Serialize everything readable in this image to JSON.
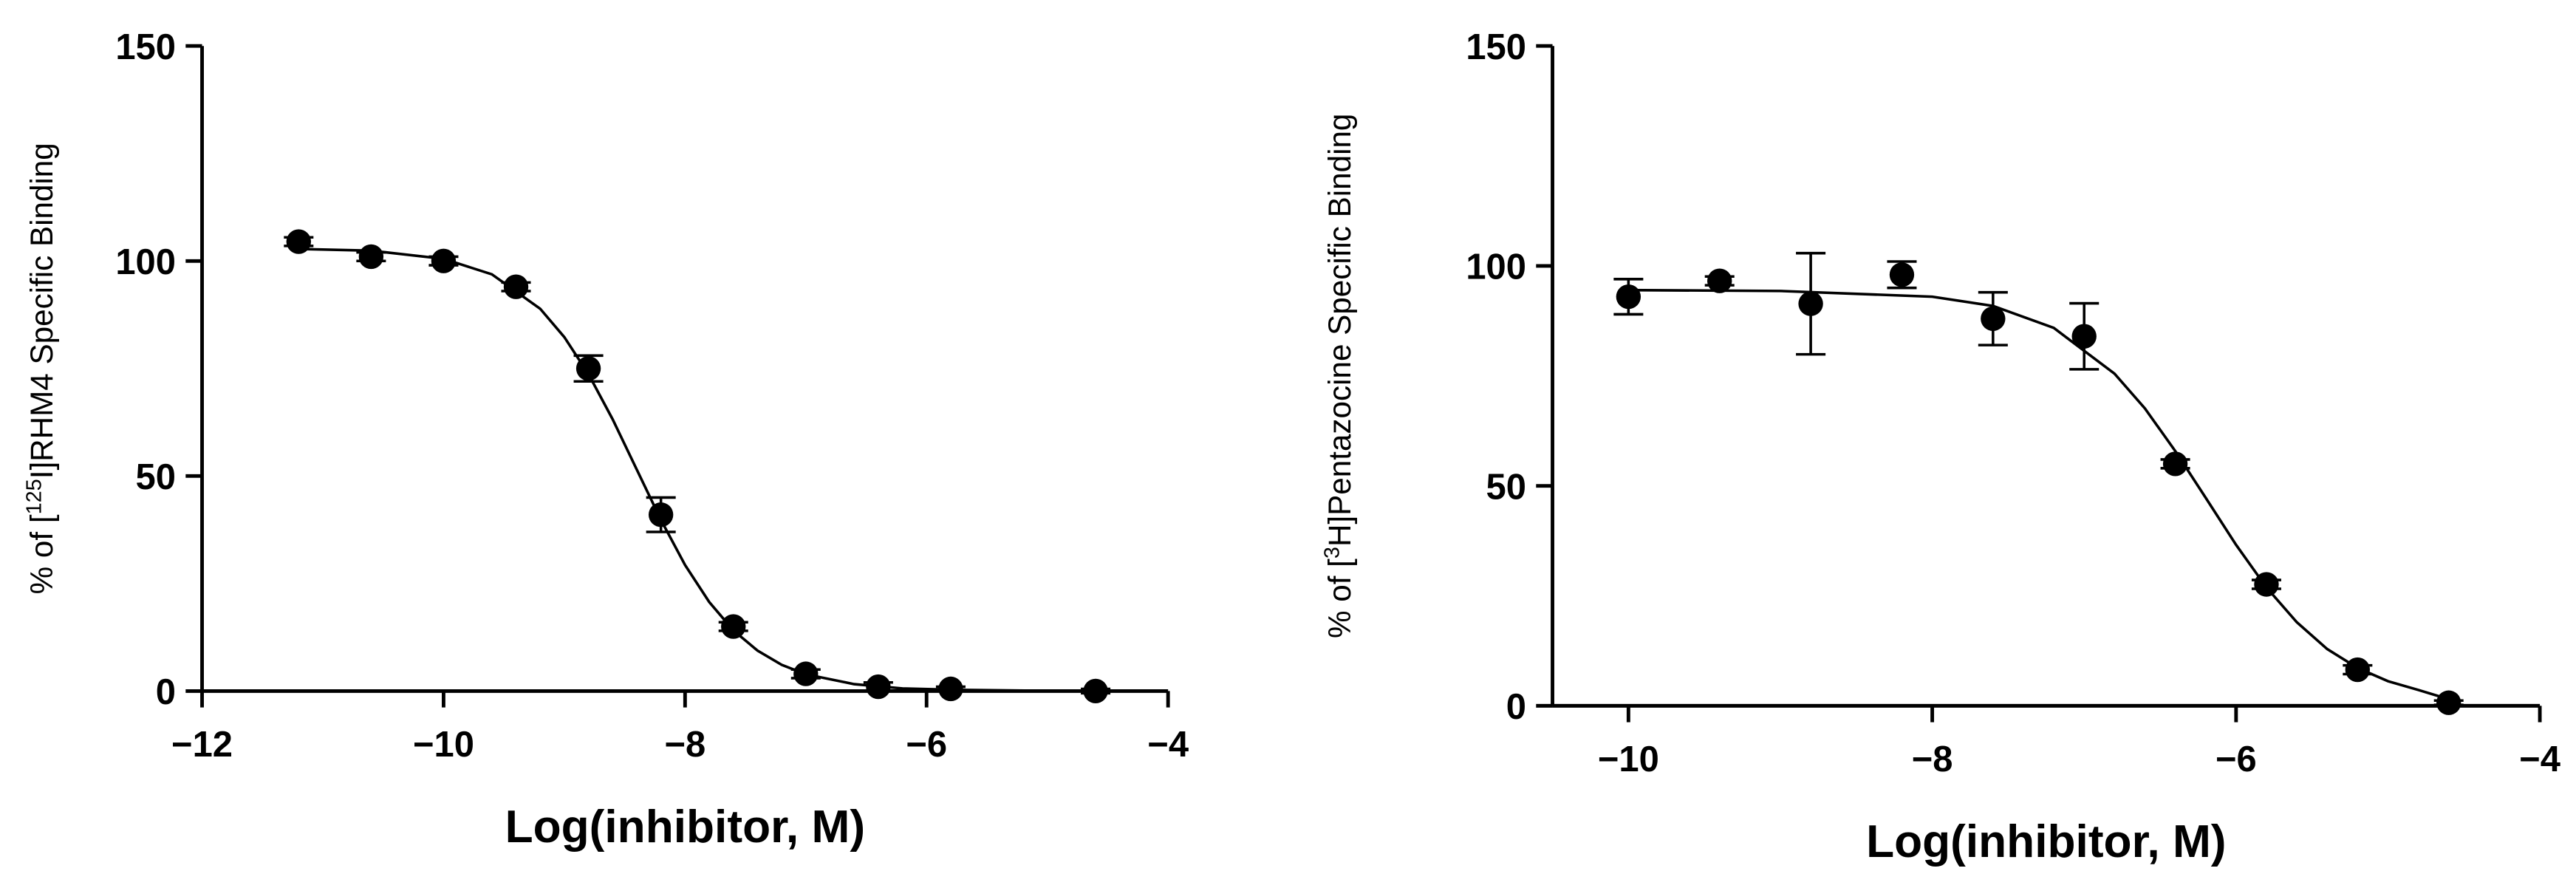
{
  "chart_data": [
    {
      "type": "scatter",
      "x_label": "Log(inhibitor, M)",
      "y_label": {
        "pre": "% of [",
        "sup": "125",
        "post": "I]RHM4 Specific  Binding"
      },
      "x": [
        -11.2,
        -10.6,
        -10,
        -9.4,
        -8.8,
        -8.2,
        -7.6,
        -7,
        -6.4,
        -5.8,
        -4.6
      ],
      "values": [
        104.5,
        101,
        100,
        94,
        75,
        41,
        15,
        4,
        1,
        0.5,
        0
      ],
      "errors": [
        1,
        1,
        1,
        1,
        3,
        4,
        1,
        1,
        1,
        0.5,
        0.5
      ],
      "curve": {
        "x": [
          -11.2,
          -10.6,
          -10,
          -9.6,
          -9.2,
          -9,
          -8.8,
          -8.6,
          -8.4,
          -8.2,
          -8,
          -7.8,
          -7.6,
          -7.4,
          -7.2,
          -7,
          -6.6,
          -6.2,
          -5.8,
          -5,
          -4.6
        ],
        "values": [
          102.8,
          102.4,
          100.5,
          96.9,
          88.9,
          82.3,
          73.7,
          63.2,
          51.5,
          39.8,
          29.3,
          20.7,
          14.1,
          9.4,
          6.1,
          3.9,
          1.6,
          0.6,
          0.3,
          0.04,
          0.02
        ]
      },
      "color": "#000000",
      "xlim": [
        -12,
        -4
      ],
      "xticks": [
        {
          "value": -12,
          "label": "−12"
        },
        {
          "value": -10,
          "label": "−10"
        },
        {
          "value": -8,
          "label": "−8"
        },
        {
          "value": -6,
          "label": "−6"
        },
        {
          "value": -4,
          "label": "−4"
        }
      ],
      "ylim": [
        0,
        150
      ],
      "yticks": [
        0,
        50,
        100,
        150
      ]
    },
    {
      "type": "scatter",
      "x_label": "Log(inhibitor, M)",
      "y_label": {
        "pre": "% of [",
        "sup": "3",
        "post": "H]Pentazocine Specific Binding"
      },
      "x": [
        -10,
        -9.4,
        -8.8,
        -8.2,
        -7.6,
        -7,
        -6.4,
        -5.8,
        -5.2,
        -4.6
      ],
      "values": [
        93,
        96.6,
        91.4,
        98,
        88,
        84,
        55,
        27.6,
        8.2,
        0.7
      ],
      "errors": [
        4,
        1,
        11.5,
        3,
        6,
        7.5,
        1,
        1,
        1,
        0.5
      ],
      "curve": {
        "x": [
          -10,
          -9,
          -8,
          -7.6,
          -7.2,
          -6.8,
          -6.6,
          -6.4,
          -6.2,
          -6,
          -5.8,
          -5.6,
          -5.4,
          -5.2,
          -5,
          -4.8,
          -4.6
        ],
        "values": [
          94.5,
          94.3,
          93,
          90.9,
          85.9,
          75.5,
          67.6,
          57.9,
          47.3,
          36.6,
          26.9,
          19,
          12.9,
          8.6,
          5.6,
          3.6,
          1.5
        ]
      },
      "color": "#000000",
      "xlim": [
        -10.5,
        -4
      ],
      "xticks": [
        {
          "value": -10,
          "label": "−10"
        },
        {
          "value": -8,
          "label": "−8"
        },
        {
          "value": -6,
          "label": "−6"
        },
        {
          "value": -4,
          "label": "−4"
        }
      ],
      "ylim": [
        0,
        150
      ],
      "yticks": [
        0,
        50,
        100,
        150
      ]
    }
  ]
}
